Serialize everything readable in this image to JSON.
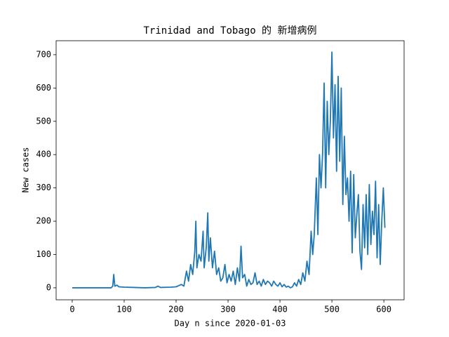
{
  "chart_data": {
    "type": "line",
    "title": "Trinidad and Tobago 的 新增病例",
    "xlabel": "Day n since 2020-01-03",
    "ylabel": "New cases",
    "color": "#1f77b4",
    "xlim": [
      -31,
      639
    ],
    "ylim": [
      -36,
      742
    ],
    "xticks": [
      0,
      100,
      200,
      300,
      400,
      500,
      600
    ],
    "yticks": [
      0,
      100,
      200,
      300,
      400,
      500,
      600,
      700
    ],
    "x": [
      0,
      20,
      40,
      60,
      75,
      78,
      80,
      82,
      86,
      90,
      100,
      120,
      140,
      160,
      165,
      170,
      190,
      200,
      210,
      215,
      220,
      224,
      228,
      232,
      236,
      238,
      240,
      244,
      248,
      252,
      254,
      258,
      261,
      263,
      266,
      270,
      274,
      278,
      282,
      286,
      290,
      294,
      298,
      302,
      306,
      310,
      314,
      318,
      322,
      325,
      328,
      332,
      336,
      340,
      344,
      348,
      352,
      356,
      360,
      364,
      368,
      372,
      376,
      380,
      384,
      388,
      392,
      396,
      400,
      404,
      408,
      412,
      416,
      420,
      424,
      428,
      432,
      436,
      440,
      444,
      448,
      452,
      456,
      460,
      463,
      466,
      470,
      473,
      476,
      479,
      482,
      485,
      488,
      491,
      494,
      497,
      500,
      503,
      506,
      509,
      512,
      515,
      518,
      521,
      524,
      527,
      530,
      533,
      536,
      539,
      542,
      545,
      548,
      551,
      554,
      557,
      560,
      563,
      566,
      569,
      572,
      575,
      578,
      581,
      584,
      587,
      590,
      593,
      596,
      599,
      602
    ],
    "values": [
      0,
      0,
      0,
      0,
      0,
      5,
      40,
      5,
      8,
      3,
      2,
      1,
      0,
      1,
      5,
      1,
      2,
      3,
      10,
      5,
      50,
      20,
      70,
      40,
      110,
      200,
      60,
      100,
      80,
      170,
      60,
      120,
      225,
      80,
      150,
      60,
      110,
      40,
      60,
      20,
      30,
      70,
      15,
      40,
      20,
      50,
      10,
      60,
      20,
      125,
      30,
      40,
      5,
      25,
      10,
      15,
      45,
      10,
      20,
      5,
      25,
      10,
      20,
      15,
      5,
      20,
      10,
      5,
      15,
      3,
      10,
      2,
      5,
      0,
      3,
      15,
      5,
      25,
      10,
      45,
      20,
      80,
      40,
      170,
      100,
      160,
      330,
      160,
      400,
      300,
      400,
      615,
      300,
      560,
      400,
      500,
      708,
      450,
      610,
      350,
      635,
      380,
      600,
      250,
      455,
      280,
      330,
      200,
      350,
      105,
      340,
      150,
      220,
      280,
      110,
      55,
      250,
      120,
      280,
      100,
      310,
      130,
      230,
      160,
      320,
      90,
      250,
      70,
      200,
      300,
      180
    ]
  }
}
